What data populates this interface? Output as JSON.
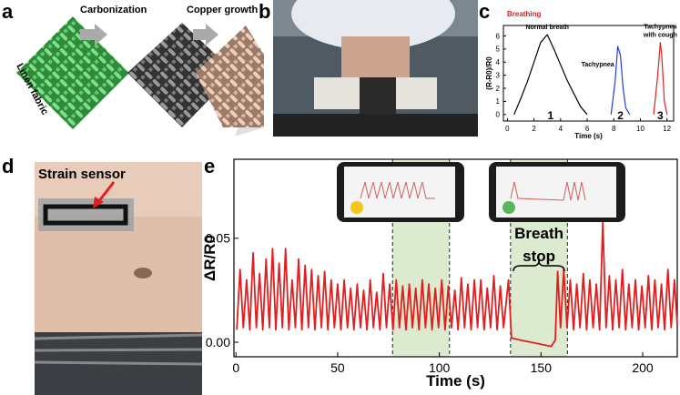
{
  "panel_labels": [
    "a",
    "b",
    "c",
    "d",
    "e"
  ],
  "panel_a": {
    "steps": [
      "Carbonization",
      "Copper growth"
    ],
    "material": "Linen fabric"
  },
  "panel_d": {
    "label": "Strain sensor"
  },
  "chart_data": [
    {
      "type": "line",
      "title": "Breathing",
      "x_label": "Time (s)",
      "y_label": "(R-R0)/R0",
      "xlim": [
        -0.3,
        12.5
      ],
      "ylim": [
        -0.5,
        6.8
      ],
      "xticks": [
        0,
        2,
        4,
        6,
        8,
        10,
        12
      ],
      "yticks": [
        0,
        1,
        2,
        3,
        4,
        5,
        6
      ],
      "series": [
        {
          "name": "1",
          "note": [
            "Normal breath"
          ],
          "color": "#000000",
          "x": [
            0.5,
            1,
            1.5,
            2,
            2.5,
            3,
            3.5,
            4,
            4.5,
            5,
            5.5,
            6
          ],
          "values": [
            0,
            1.2,
            2.5,
            4,
            5.5,
            6.1,
            5,
            3.8,
            2.6,
            1.6,
            0.6,
            0
          ]
        },
        {
          "name": "2",
          "note": [
            "Tachypnea"
          ],
          "color": "#1f3fd6",
          "x": [
            7.8,
            8.1,
            8.3,
            8.5,
            8.7,
            8.9,
            9.2
          ],
          "values": [
            0,
            2.5,
            5.2,
            4.5,
            2,
            0.5,
            0
          ]
        },
        {
          "name": "3",
          "note": [
            "Tachypnea",
            "with cough"
          ],
          "color": "#e02020",
          "x": [
            11.0,
            11.3,
            11.5,
            11.6,
            11.8,
            12.0
          ],
          "values": [
            0,
            3,
            5.5,
            4.6,
            1,
            0
          ]
        }
      ]
    },
    {
      "type": "line",
      "x_label": "Time (s)",
      "y_label": "ΔR/R0",
      "xlim": [
        -1,
        217
      ],
      "ylim": [
        -0.007,
        0.088
      ],
      "xticks": [
        0,
        50,
        100,
        150,
        200
      ],
      "yticks": [
        {
          "value": 0,
          "label": "0.00"
        },
        {
          "value": 0.05,
          "label": "0.05"
        }
      ],
      "highlight_ranges": [
        [
          77,
          105
        ],
        [
          135,
          163
        ]
      ],
      "annotation": [
        "Breath",
        "stop"
      ],
      "x": [
        0.4,
        2.0,
        3.6,
        5.2,
        6.8,
        8.4,
        10.0,
        11.6,
        13.2,
        14.8,
        16.4,
        18.0,
        19.6,
        21.2,
        22.8,
        24.4,
        26.0,
        27.6,
        29.2,
        30.8,
        32.4,
        34.0,
        35.6,
        37.2,
        38.8,
        40.4,
        42.0,
        43.6,
        45.2,
        46.8,
        48.4,
        50.0,
        51.6,
        53.2,
        54.8,
        56.4,
        58.0,
        59.6,
        61.2,
        62.8,
        64.4,
        66.0,
        67.6,
        69.2,
        70.8,
        72.4,
        74.0,
        75.6,
        77.2,
        78.8,
        80.4,
        82.0,
        83.6,
        85.2,
        86.8,
        88.4,
        90.0,
        91.6,
        93.2,
        94.8,
        96.4,
        98.0,
        99.6,
        101.2,
        102.8,
        104.4,
        106.0,
        107.6,
        109.2,
        110.8,
        112.4,
        114.0,
        115.6,
        117.2,
        118.8,
        120.4,
        122.0,
        123.6,
        125.2,
        126.8,
        128.4,
        130.0,
        131.6,
        134.0,
        135.5,
        140,
        145,
        150,
        155,
        157,
        158.2,
        159.6,
        161.2,
        162.8,
        164.4,
        166.0,
        167.6,
        169.2,
        170.8,
        172.4,
        174.0,
        175.6,
        177.2,
        178.8,
        180.4,
        182.0,
        183.6,
        185.2,
        186.8,
        188.4,
        190.0,
        191.6,
        193.2,
        194.8,
        196.4,
        198.0,
        199.6,
        201.2,
        202.8,
        204.4,
        206.0,
        207.6,
        209.2,
        210.8,
        212.4,
        214.0,
        215.6,
        217.0
      ],
      "series": [
        {
          "color": "#e02020",
          "values": [
            0.006,
            0.035,
            0.007,
            0.03,
            0.006,
            0.043,
            0.007,
            0.033,
            0.006,
            0.04,
            0.007,
            0.045,
            0.006,
            0.038,
            0.007,
            0.045,
            0.006,
            0.03,
            0.007,
            0.04,
            0.006,
            0.037,
            0.007,
            0.035,
            0.006,
            0.032,
            0.007,
            0.034,
            0.006,
            0.03,
            0.007,
            0.028,
            0.006,
            0.03,
            0.007,
            0.026,
            0.006,
            0.028,
            0.007,
            0.025,
            0.006,
            0.03,
            0.007,
            0.024,
            0.006,
            0.033,
            0.007,
            0.028,
            0.006,
            0.03,
            0.007,
            0.027,
            0.006,
            0.028,
            0.007,
            0.026,
            0.006,
            0.03,
            0.007,
            0.028,
            0.006,
            0.026,
            0.007,
            0.03,
            0.006,
            0.027,
            0.007,
            0.025,
            0.006,
            0.031,
            0.007,
            0.028,
            0.006,
            0.03,
            0.007,
            0.03,
            0.006,
            0.026,
            0.007,
            0.032,
            0.006,
            0.027,
            0.007,
            0.03,
            0.002,
            0.001,
            0.0,
            -0.001,
            -0.002,
            0.001,
            0.034,
            0.007,
            0.035,
            0.007,
            0.03,
            0.006,
            0.028,
            0.007,
            0.033,
            0.006,
            0.03,
            0.007,
            0.028,
            0.006,
            0.058,
            0.007,
            0.032,
            0.006,
            0.03,
            0.007,
            0.035,
            0.006,
            0.028,
            0.007,
            0.03,
            0.006,
            0.027,
            0.007,
            0.032,
            0.006,
            0.03,
            0.007,
            0.028,
            0.006,
            0.035,
            0.007,
            0.03,
            0.008
          ]
        }
      ]
    }
  ]
}
